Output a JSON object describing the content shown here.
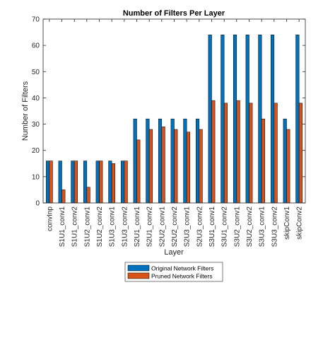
{
  "chart_data": {
    "type": "bar",
    "title": "Number of Filters Per Layer",
    "xlabel": "Layer",
    "ylabel": "Number of Filters",
    "ylim": [
      0,
      70
    ],
    "yticks": [
      0,
      10,
      20,
      30,
      40,
      50,
      60,
      70
    ],
    "grid": false,
    "legend_position": "bottom",
    "categories": [
      "convInp",
      "S1U1_conv1",
      "S1U1_conv2",
      "S1U2_conv1",
      "S1U2_conv2",
      "S1U3_conv1",
      "S1U3_conv2",
      "S2U1_conv1",
      "S2U1_conv2",
      "S2U2_conv1",
      "S2U2_conv2",
      "S2U3_conv1",
      "S2U3_conv2",
      "S3U1_conv1",
      "S3U1_conv2",
      "S3U2_conv1",
      "S3U2_conv2",
      "S3U3_conv1",
      "S3U3_conv2",
      "skipConv1",
      "skipConv2"
    ],
    "series": [
      {
        "name": "Original Network Filters",
        "color": "#0072BD",
        "values": [
          16,
          16,
          16,
          16,
          16,
          16,
          16,
          32,
          32,
          32,
          32,
          32,
          32,
          64,
          64,
          64,
          64,
          64,
          64,
          32,
          64
        ]
      },
      {
        "name": "Pruned Network Filters",
        "color": "#D95319",
        "values": [
          16,
          5,
          16,
          6,
          16,
          15,
          16,
          24,
          28,
          29,
          28,
          27,
          28,
          39,
          38,
          39,
          38,
          32,
          38,
          28,
          38
        ]
      }
    ]
  }
}
